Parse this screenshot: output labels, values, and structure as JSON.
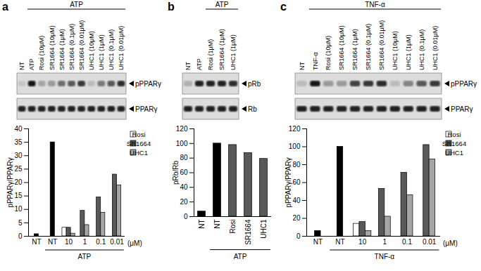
{
  "chart_data": [
    {
      "type": "bar",
      "title": "a",
      "blot": {
        "lanes_before": [
          "NT"
        ],
        "header": "ATP",
        "header_lanes": [
          "ATP",
          "Rosi (10μM)",
          "SR1664 (10μM)",
          "SR1664 (1μM)",
          "SR1664 (0.1μM)",
          "SR1664 (0.01μM)",
          "UHC1 (10μM)",
          "UHC1 (1μM)",
          "UHC1 (0.1μM)",
          "UHC1 (0.01μM)"
        ],
        "rows": [
          {
            "label": "pPPARγ",
            "band_intensity": [
              0.1,
              0.9,
              0.25,
              0.3,
              0.5,
              0.6,
              0.75,
              0.15,
              0.45,
              0.6,
              0.8
            ]
          },
          {
            "label": "PPARγ",
            "band_intensity": [
              0.85,
              0.85,
              0.85,
              0.85,
              0.85,
              0.85,
              0.85,
              0.85,
              0.85,
              0.85,
              0.85
            ]
          }
        ]
      },
      "categories": [
        "NT",
        "NT",
        "10",
        "1",
        "0.1",
        "0.01"
      ],
      "groups": [
        null,
        "ATP",
        "ATP",
        "ATP",
        "ATP",
        "ATP"
      ],
      "xlabel": "(μM)",
      "ylabel": "pPPARγ/PPARγ",
      "ylim": [
        0,
        40
      ],
      "yticks": [
        0,
        5,
        10,
        15,
        20,
        25,
        30,
        35,
        40
      ],
      "legend": "top-right",
      "series": [
        {
          "color": "#000000",
          "values": [
            0.8,
            35,
            null,
            null,
            null,
            null
          ]
        },
        {
          "name": "Rosi",
          "color": "#ffffff",
          "values": [
            null,
            null,
            3.2,
            null,
            null,
            null
          ]
        },
        {
          "name": "SR1664",
          "color": "#595959",
          "values": [
            null,
            null,
            3.2,
            9.5,
            14.5,
            23
          ]
        },
        {
          "name": "UHC1",
          "color": "#a6a6a6",
          "values": [
            null,
            null,
            1,
            4.2,
            8.8,
            19
          ]
        }
      ]
    },
    {
      "type": "bar",
      "title": "b",
      "blot": {
        "lanes_before": [
          "NT",
          "ATP"
        ],
        "header": "ATP",
        "header_lanes": [
          "Rosi (1μM)",
          "SR1664 (1μM)",
          "UHC1 (1μM)"
        ],
        "rows": [
          {
            "label": "pRb",
            "band_intensity": [
              0.2,
              0.85,
              0.85,
              0.85,
              0.8
            ]
          },
          {
            "label": "Rb",
            "band_intensity": [
              0.85,
              0.85,
              0.85,
              0.85,
              0.85
            ]
          }
        ]
      },
      "categories": [
        "NT",
        "NT",
        "Rosi",
        "SR1664",
        "UHC1"
      ],
      "groups": [
        null,
        "ATP",
        "ATP",
        "ATP",
        "ATP"
      ],
      "ylabel": "pRb/Rb",
      "ylim": [
        0,
        120
      ],
      "yticks": [
        0,
        20,
        40,
        60,
        80,
        100,
        120
      ],
      "series": [
        {
          "colors": [
            "#000000",
            "#000000",
            "#595959",
            "#595959",
            "#595959"
          ],
          "values": [
            7,
            100,
            98,
            87,
            79
          ]
        }
      ]
    },
    {
      "type": "bar",
      "title": "c",
      "blot": {
        "lanes_before": [
          "NT"
        ],
        "header": "TNF-α",
        "header_lanes": [
          "TNF-α",
          "Rosi (10μM)",
          "SR1664 (10μM)",
          "SR1664 (1μM)",
          "SR1664 (0.1μM)",
          "SR1664 (0.01μM)",
          "UHC1 (10μM)",
          "UHC1 (1μM)",
          "UHC1 (0.1μM)",
          "UHC1 (0.01μM)"
        ],
        "rows": [
          {
            "label": "pPPARγ",
            "band_intensity": [
              0.15,
              0.9,
              0.3,
              0.3,
              0.7,
              0.75,
              0.8,
              0.15,
              0.4,
              0.6,
              0.75
            ]
          },
          {
            "label": "PPARγ",
            "band_intensity": [
              0.85,
              0.85,
              0.85,
              0.85,
              0.85,
              0.85,
              0.85,
              0.85,
              0.85,
              0.85,
              0.85
            ]
          }
        ]
      },
      "categories": [
        "NT",
        "NT",
        "10",
        "1",
        "0.1",
        "0.01"
      ],
      "groups": [
        null,
        "TNF-α",
        "TNF-α",
        "TNF-α",
        "TNF-α",
        "TNF-α"
      ],
      "xlabel": "(μM)",
      "ylabel": "pPPARγ/PPARγ",
      "ylim": [
        0,
        120
      ],
      "yticks": [
        0,
        20,
        40,
        60,
        80,
        100,
        120
      ],
      "legend": "top-right",
      "series": [
        {
          "color": "#000000",
          "values": [
            6,
            100,
            null,
            null,
            null,
            null
          ]
        },
        {
          "name": "Rosi",
          "color": "#ffffff",
          "values": [
            null,
            null,
            14,
            null,
            null,
            null
          ]
        },
        {
          "name": "SR1664",
          "color": "#595959",
          "values": [
            null,
            null,
            16,
            53,
            71,
            102
          ]
        },
        {
          "name": "UHC1",
          "color": "#a6a6a6",
          "values": [
            null,
            null,
            6,
            22,
            46,
            86
          ]
        }
      ]
    }
  ]
}
